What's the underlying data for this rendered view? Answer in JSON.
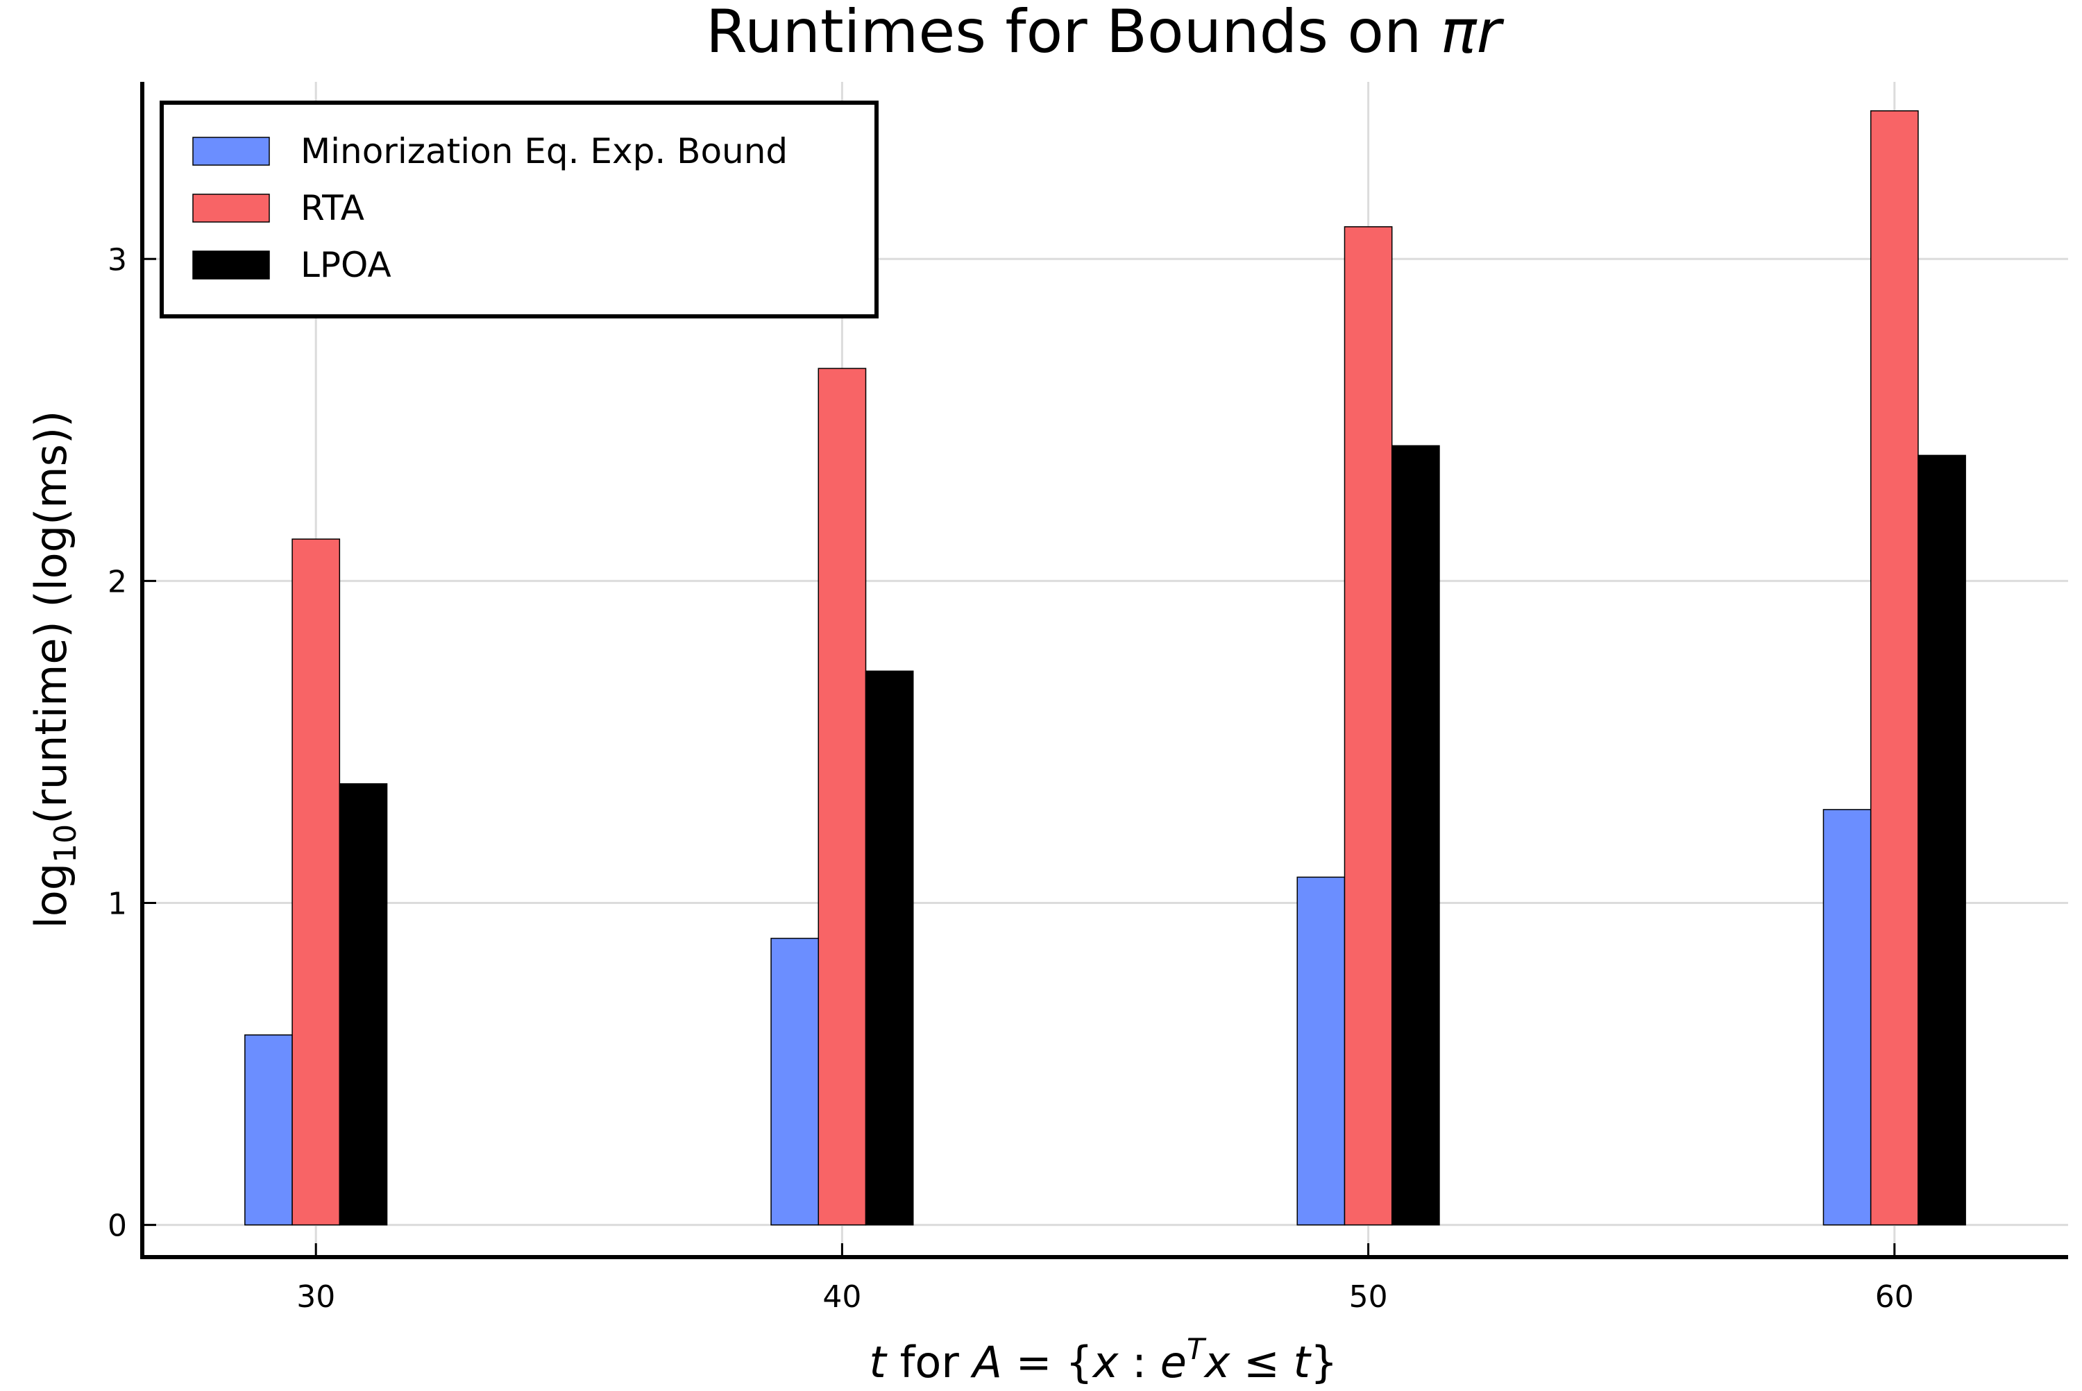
{
  "chart_data": {
    "type": "bar",
    "title": "Runtimes for Bounds on πr",
    "title_parts": {
      "text": "Runtimes for Bounds on ",
      "math": "πr"
    },
    "xlabel": "t for A = {x : eᵀx ≤ t}",
    "xlabel_parts": {
      "t": "t",
      "for": " for ",
      "A": "A",
      "eq": " = {",
      "x1": "x",
      "colon": " : ",
      "e": "e",
      "T": "T",
      "x2": "x",
      "leq": " ≤ ",
      "t2": "t",
      "close": "}"
    },
    "ylabel": "log10(runtime) (log(ms))",
    "ylabel_parts": {
      "pre": "log",
      "sub": "10",
      "post": "(runtime) (log(ms))"
    },
    "categories": [
      30,
      40,
      50,
      60
    ],
    "xlim": [
      26.7,
      63.3
    ],
    "ylim": [
      -0.1,
      3.55
    ],
    "xticks": [
      "30",
      "40",
      "50",
      "60"
    ],
    "yticks": [
      "0",
      "1",
      "2",
      "3"
    ],
    "grid": true,
    "legend_position": "top-left",
    "series": [
      {
        "name": "Minorization Eq. Exp. Bound",
        "color": "#6b8eff",
        "values": [
          0.59,
          0.89,
          1.08,
          1.29
        ]
      },
      {
        "name": "RTA",
        "color": "#f86466",
        "values": [
          2.13,
          2.66,
          3.1,
          3.46
        ]
      },
      {
        "name": "LPOA",
        "color": "#000000",
        "values": [
          1.37,
          1.72,
          2.42,
          2.39
        ]
      }
    ]
  }
}
